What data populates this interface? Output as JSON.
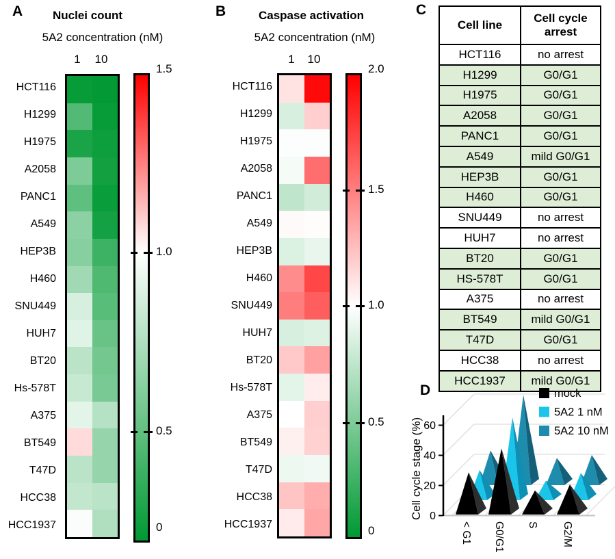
{
  "figure_bg": "#FFFFFF",
  "chart_data": [
    {
      "panel_label": "A",
      "type": "heatmap",
      "title": "Nuclei count",
      "subtitle": "5A2 concentration (nM)",
      "columns": [
        "1",
        "10"
      ],
      "rows": [
        "HCT116",
        "H1299",
        "H1975",
        "A2058",
        "PANC1",
        "A549",
        "HEP3B",
        "H460",
        "SNU449",
        "HUH7",
        "BT20",
        "Hs-578T",
        "A375",
        "BT549",
        "T47D",
        "HCC38",
        "HCC1937"
      ],
      "values": [
        [
          0.03,
          0.01
        ],
        [
          0.32,
          0.03
        ],
        [
          0.1,
          0.05
        ],
        [
          0.49,
          0.07
        ],
        [
          0.37,
          0.04
        ],
        [
          0.55,
          0.08
        ],
        [
          0.53,
          0.24
        ],
        [
          0.63,
          0.31
        ],
        [
          0.84,
          0.35
        ],
        [
          0.88,
          0.41
        ],
        [
          0.73,
          0.45
        ],
        [
          0.78,
          0.47
        ],
        [
          0.89,
          0.71
        ],
        [
          1.07,
          0.59
        ],
        [
          0.73,
          0.59
        ],
        [
          0.76,
          0.73
        ],
        [
          0.98,
          0.69
        ]
      ],
      "colorbar": {
        "min": 0,
        "max": 1.5,
        "tick_labels": [
          "1.5",
          "1.0",
          "0.5",
          "0"
        ],
        "high_color": "#FF0000",
        "mid_color": "#FFFFFF",
        "low_color": "#009933"
      }
    },
    {
      "panel_label": "B",
      "type": "heatmap",
      "title": "Caspase activation",
      "subtitle": "5A2 concentration (nM)",
      "columns": [
        "1",
        "10"
      ],
      "rows": [
        "HCT116",
        "H1299",
        "H1975",
        "A2058",
        "PANC1",
        "A549",
        "HEP3B",
        "H460",
        "SNU449",
        "HUH7",
        "BT20",
        "Hs-578T",
        "A375",
        "BT549",
        "T47D",
        "HCC38",
        "HCC1937"
      ],
      "values": [
        [
          1.11,
          1.96
        ],
        [
          0.84,
          1.19
        ],
        [
          0.99,
          0.99
        ],
        [
          0.96,
          1.57
        ],
        [
          0.75,
          0.82
        ],
        [
          1.02,
          1.01
        ],
        [
          0.86,
          0.91
        ],
        [
          1.45,
          1.72
        ],
        [
          1.51,
          1.63
        ],
        [
          0.84,
          0.87
        ],
        [
          1.21,
          1.37
        ],
        [
          0.89,
          1.07
        ],
        [
          1.0,
          1.19
        ],
        [
          1.06,
          1.18
        ],
        [
          0.93,
          0.94
        ],
        [
          1.23,
          1.32
        ],
        [
          1.08,
          1.35
        ]
      ],
      "colorbar": {
        "min": 0,
        "max": 2.0,
        "tick_labels": [
          "2.0",
          "1.5",
          "1.0",
          "0.5",
          "0"
        ],
        "high_color": "#FF0000",
        "mid_color": "#FFFFFF",
        "low_color": "#009933"
      }
    },
    {
      "panel_label": "C",
      "type": "table",
      "headers": [
        "Cell line",
        "Cell cycle arrest"
      ],
      "highlight_color": "#DEEDD6",
      "rows": [
        {
          "cell_line": "HCT116",
          "arrest": "no arrest",
          "highlighted": false
        },
        {
          "cell_line": "H1299",
          "arrest": "G0/G1",
          "highlighted": true
        },
        {
          "cell_line": "H1975",
          "arrest": "G0/G1",
          "highlighted": true
        },
        {
          "cell_line": "A2058",
          "arrest": "G0/G1",
          "highlighted": true
        },
        {
          "cell_line": "PANC1",
          "arrest": "G0/G1",
          "highlighted": true
        },
        {
          "cell_line": "A549",
          "arrest": "mild G0/G1",
          "highlighted": true
        },
        {
          "cell_line": "HEP3B",
          "arrest": "G0/G1",
          "highlighted": true
        },
        {
          "cell_line": "H460",
          "arrest": "G0/G1",
          "highlighted": true
        },
        {
          "cell_line": "SNU449",
          "arrest": "no arrest",
          "highlighted": false
        },
        {
          "cell_line": "HUH7",
          "arrest": "no arrest",
          "highlighted": false
        },
        {
          "cell_line": "BT20",
          "arrest": "G0/G1",
          "highlighted": true
        },
        {
          "cell_line": "HS-578T",
          "arrest": "G0/G1",
          "highlighted": true
        },
        {
          "cell_line": "A375",
          "arrest": "no arrest",
          "highlighted": false
        },
        {
          "cell_line": "BT549",
          "arrest": "mild G0/G1",
          "highlighted": true
        },
        {
          "cell_line": "T47D",
          "arrest": "G0/G1",
          "highlighted": true
        },
        {
          "cell_line": "HCC38",
          "arrest": "no arrest",
          "highlighted": false
        },
        {
          "cell_line": "HCC1937",
          "arrest": "mild G0/G1",
          "highlighted": true
        }
      ]
    },
    {
      "panel_label": "D",
      "type": "3d_pyramid_bar",
      "ylabel": "Cell cycle stage (%)",
      "ylim": [
        0,
        60
      ],
      "ytick_labels": [
        "0",
        "20",
        "40",
        "60"
      ],
      "categories": [
        "< G1",
        "G0/G1",
        "S",
        "G2/M"
      ],
      "series": [
        {
          "name": "mock",
          "color": "#000000",
          "side_color": "#2E2E2E",
          "values": [
            28,
            44,
            16,
            20
          ]
        },
        {
          "name": "5A2 1 nM",
          "color": "#1BC4E9",
          "side_color": "#0E8FB4",
          "values": [
            20,
            55,
            13,
            18
          ]
        },
        {
          "name": "5A2 10 nM",
          "color": "#1E8CAD",
          "side_color": "#14607A",
          "values": [
            23,
            60,
            18,
            20
          ]
        }
      ]
    }
  ]
}
